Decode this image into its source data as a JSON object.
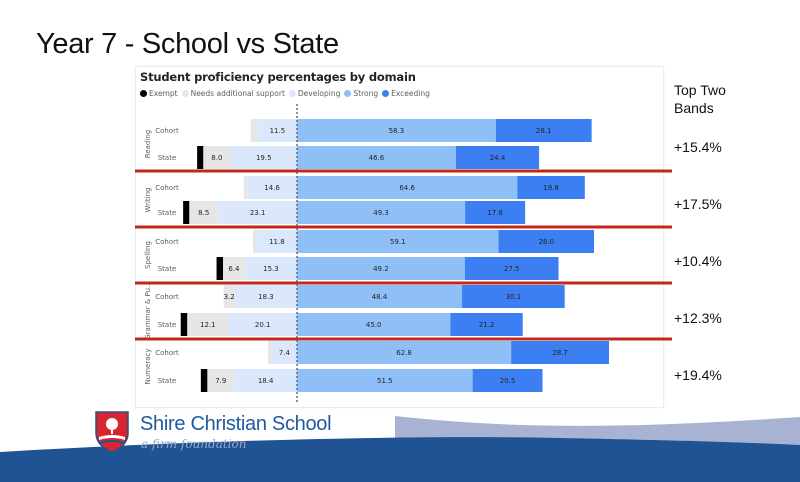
{
  "slide": {
    "title": "Year 7 - School vs State"
  },
  "side_panel": {
    "heading_line1": "Top Two",
    "heading_line2": "Bands",
    "differences": [
      "+15.4%",
      "+17.5%",
      "+10.4%",
      "+12.3%",
      "+19.4%"
    ]
  },
  "footer": {
    "school_name": "Shire Christian School",
    "tagline": "a firm foundation"
  },
  "colors": {
    "exempt": "#000000",
    "needs_support": "#e6e6e6",
    "developing": "#dbe8fb",
    "strong": "#8fbff7",
    "exceeding": "#3b7ff2",
    "separator": "#c0281b",
    "zero_line": "#5b6b84",
    "brand_dark": "#1f5394",
    "brand_light": "#a8b3d3"
  },
  "chart_data": {
    "type": "bar",
    "subtype": "diverging-stacked-horizontal",
    "title": "Student proficiency percentages by domain",
    "legend_position": "top-left",
    "legend": [
      "Exempt",
      "Needs additional support",
      "Developing",
      "Strong",
      "Exceeding"
    ],
    "categories_left": [
      "Exempt",
      "Needs additional support",
      "Developing"
    ],
    "categories_right": [
      "Strong",
      "Exceeding"
    ],
    "xlim": [
      -33,
      100
    ],
    "domains": [
      {
        "name": "Reading",
        "rows": [
          {
            "label": "Cohort",
            "exempt": 0,
            "needs_support": 2.1,
            "developing": 11.5,
            "strong": 58.3,
            "exceeding": 28.1,
            "labels": {
              "needs_support": "",
              "developing": "11.5",
              "strong": "58.3",
              "exceeding": "28.1"
            }
          },
          {
            "label": "State",
            "exempt": 1.5,
            "needs_support": 8.0,
            "developing": 19.5,
            "strong": 46.6,
            "exceeding": 24.4,
            "labels": {
              "needs_support": "8.0",
              "developing": "19.5",
              "strong": "46.6",
              "exceeding": "24.4"
            }
          }
        ],
        "top_two_difference": "+15.4%"
      },
      {
        "name": "Writing",
        "rows": [
          {
            "label": "Cohort",
            "exempt": 0,
            "needs_support": 1.0,
            "developing": 14.6,
            "strong": 64.6,
            "exceeding": 19.8,
            "labels": {
              "needs_support": "",
              "developing": "14.6",
              "strong": "64.6",
              "exceeding": "19.8"
            }
          },
          {
            "label": "State",
            "exempt": 1.5,
            "needs_support": 8.5,
            "developing": 23.1,
            "strong": 49.3,
            "exceeding": 17.6,
            "labels": {
              "needs_support": "8.5",
              "developing": "23.1",
              "strong": "49.3",
              "exceeding": "17.6"
            }
          }
        ],
        "top_two_difference": "+17.5%"
      },
      {
        "name": "Spelling",
        "rows": [
          {
            "label": "Cohort",
            "exempt": 0,
            "needs_support": 1.1,
            "developing": 11.8,
            "strong": 59.1,
            "exceeding": 28.0,
            "labels": {
              "needs_support": "",
              "developing": "11.8",
              "strong": "59.1",
              "exceeding": "28.0"
            }
          },
          {
            "label": "State",
            "exempt": 1.6,
            "needs_support": 6.4,
            "developing": 15.3,
            "strong": 49.2,
            "exceeding": 27.5,
            "labels": {
              "needs_support": "6.4",
              "developing": "15.3",
              "strong": "49.2",
              "exceeding": "27.5"
            }
          }
        ],
        "top_two_difference": "+10.4%"
      },
      {
        "name": "Grammar & Pu...",
        "rows": [
          {
            "label": "Cohort",
            "exempt": 0,
            "needs_support": 3.2,
            "developing": 18.3,
            "strong": 48.4,
            "exceeding": 30.1,
            "labels": {
              "needs_support": "3.2",
              "developing": "18.3",
              "strong": "48.4",
              "exceeding": "30.1"
            }
          },
          {
            "label": "State",
            "exempt": 1.6,
            "needs_support": 12.1,
            "developing": 20.1,
            "strong": 45.0,
            "exceeding": 21.2,
            "labels": {
              "needs_support": "12.1",
              "developing": "20.1",
              "strong": "45.0",
              "exceeding": "21.2"
            }
          }
        ],
        "top_two_difference": "+12.3%"
      },
      {
        "name": "Numeracy",
        "rows": [
          {
            "label": "Cohort",
            "exempt": 0,
            "needs_support": 1.1,
            "developing": 7.4,
            "strong": 62.8,
            "exceeding": 28.7,
            "labels": {
              "needs_support": "",
              "developing": "7.4",
              "strong": "62.8",
              "exceeding": "28.7"
            }
          },
          {
            "label": "State",
            "exempt": 1.6,
            "needs_support": 7.9,
            "developing": 18.4,
            "strong": 51.5,
            "exceeding": 20.5,
            "labels": {
              "needs_support": "7.9",
              "developing": "18.4",
              "strong": "51.5",
              "exceeding": "20.5"
            }
          }
        ],
        "top_two_difference": "+19.4%"
      }
    ]
  }
}
